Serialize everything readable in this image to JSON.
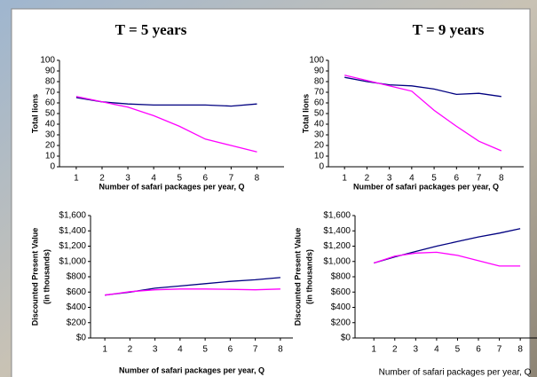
{
  "chart_data": [
    {
      "type": "line",
      "title": "T = 5 years",
      "ylabel": [
        "Total lions"
      ],
      "xlabel": "Number of safari packages per year, Q",
      "x": [
        1,
        2,
        3,
        4,
        5,
        6,
        7,
        8
      ],
      "xlim": [
        0.35,
        9.05
      ],
      "xticks": [
        1,
        2,
        3,
        4,
        5,
        6,
        7,
        8
      ],
      "ylim": [
        0,
        100
      ],
      "yticks": [
        0,
        10,
        20,
        30,
        40,
        50,
        60,
        70,
        80,
        90,
        100
      ],
      "series": [
        {
          "color": "#000080",
          "values": [
            65,
            61,
            59,
            58,
            58,
            58,
            57,
            59
          ]
        },
        {
          "color": "#ff00ff",
          "values": [
            66,
            61,
            56,
            48,
            38,
            26,
            20,
            14
          ]
        }
      ]
    },
    {
      "type": "line",
      "title": "T = 9 years",
      "ylabel": [
        "Total lions"
      ],
      "xlabel": "Number of safari packages per year, Q",
      "x": [
        1,
        2,
        3,
        4,
        5,
        6,
        7,
        8
      ],
      "xlim": [
        0.28,
        9.0
      ],
      "xticks": [
        1,
        2,
        3,
        4,
        5,
        6,
        7,
        8
      ],
      "ylim": [
        0,
        100
      ],
      "yticks": [
        0,
        10,
        20,
        30,
        40,
        50,
        60,
        70,
        80,
        90,
        100
      ],
      "series": [
        {
          "color": "#000080",
          "values": [
            84,
            80,
            77,
            76,
            73,
            68,
            69,
            66
          ]
        },
        {
          "color": "#ff00ff",
          "values": [
            86,
            81,
            76,
            71,
            53,
            38,
            24,
            15
          ]
        }
      ]
    },
    {
      "type": "line",
      "ylabel": [
        "Discounted Present Value",
        "(in thousands)"
      ],
      "xlabel": "Number of safari packages per year, Q",
      "x": [
        1,
        2,
        3,
        4,
        5,
        6,
        7,
        8
      ],
      "xlim": [
        0.43,
        8.5
      ],
      "xticks": [
        1,
        2,
        3,
        4,
        5,
        6,
        7,
        8
      ],
      "ylim": [
        0,
        1600
      ],
      "yticks": [
        {
          "value": 0,
          "label": "$0"
        },
        {
          "value": 200,
          "label": "$200"
        },
        {
          "value": 400,
          "label": "$400"
        },
        {
          "value": 600,
          "label": "$600"
        },
        {
          "value": 800,
          "label": "$800"
        },
        {
          "value": 1000,
          "label": "$1,000"
        },
        {
          "value": 1200,
          "label": "$1,200"
        },
        {
          "value": 1400,
          "label": "$1,400"
        },
        {
          "value": 1600,
          "label": "$1,600"
        }
      ],
      "series": [
        {
          "color": "#000080",
          "values": [
            560,
            600,
            650,
            680,
            710,
            740,
            760,
            790
          ]
        },
        {
          "color": "#ff00ff",
          "values": [
            560,
            605,
            630,
            640,
            640,
            635,
            630,
            640
          ]
        }
      ]
    },
    {
      "type": "line",
      "ylabel": [
        "Discounted Present Value",
        "(in thousands)"
      ],
      "xlabel": "Number of safari packages per year, Q",
      "x": [
        1,
        2,
        3,
        4,
        5,
        6,
        7,
        8
      ],
      "xlim": [
        0.1,
        8.8
      ],
      "xticks": [
        1,
        2,
        3,
        4,
        5,
        6,
        7,
        8
      ],
      "ylim": [
        0,
        1600
      ],
      "yticks": [
        {
          "value": 0,
          "label": "$0"
        },
        {
          "value": 200,
          "label": "$200"
        },
        {
          "value": 400,
          "label": "$400"
        },
        {
          "value": 600,
          "label": "$600"
        },
        {
          "value": 800,
          "label": "$800"
        },
        {
          "value": 1000,
          "label": "$1,000"
        },
        {
          "value": 1200,
          "label": "$1,200"
        },
        {
          "value": 1400,
          "label": "$1,400"
        },
        {
          "value": 1600,
          "label": "$1,600"
        }
      ],
      "series": [
        {
          "color": "#000080",
          "values": [
            980,
            1060,
            1130,
            1200,
            1260,
            1320,
            1370,
            1430
          ]
        },
        {
          "color": "#ff00ff",
          "values": [
            980,
            1070,
            1110,
            1120,
            1080,
            1010,
            940,
            940
          ]
        }
      ]
    }
  ]
}
